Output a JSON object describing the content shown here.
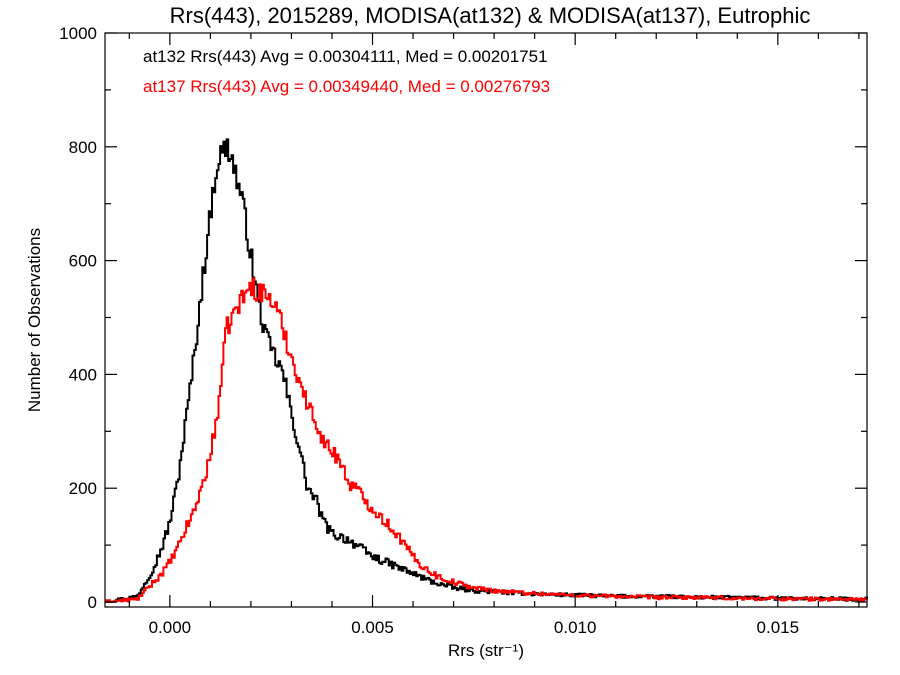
{
  "chart_data": {
    "type": "line",
    "title": "Rrs(443), 2015289, MODISA(at132) & MODISA(at137), Eutrophic",
    "xlabel": "Rrs (str⁻¹)",
    "ylabel": "Number of Observations",
    "xlim": [
      -0.0016,
      0.0172
    ],
    "ylim": [
      0,
      1000
    ],
    "x_ticks": [
      0.0,
      0.005,
      0.01,
      0.015
    ],
    "x_tick_labels": [
      "0.000",
      "0.005",
      "0.010",
      "0.015"
    ],
    "y_ticks": [
      0,
      200,
      400,
      600,
      800,
      1000
    ],
    "y_tick_labels": [
      "0",
      "200",
      "400",
      "600",
      "800",
      "1000"
    ],
    "grid": false,
    "line_style": "step",
    "annotations": [
      "at132 Rrs(443) Avg = 0.00304111, Med = 0.00201751",
      "at137 Rrs(443) Avg = 0.00349440, Med = 0.00276793"
    ],
    "series": [
      {
        "color": "#000000",
        "x": [
          -0.0016,
          -0.0008,
          -0.0006,
          -0.0004,
          -0.0002,
          0.0,
          0.0002,
          0.0004,
          0.0006,
          0.0008,
          0.001,
          0.0011,
          0.0012,
          0.0013,
          0.0014,
          0.0015,
          0.0016,
          0.0018,
          0.002,
          0.0022,
          0.0024,
          0.0026,
          0.0028,
          0.003,
          0.0032,
          0.0034,
          0.0036,
          0.0038,
          0.004,
          0.0042,
          0.0044,
          0.0046,
          0.0048,
          0.005,
          0.0055,
          0.006,
          0.0065,
          0.007,
          0.0075,
          0.008,
          0.009,
          0.01,
          0.011,
          0.012,
          0.013,
          0.014,
          0.015,
          0.016,
          0.017
        ],
        "y": [
          0,
          10,
          35,
          60,
          95,
          140,
          215,
          320,
          430,
          560,
          680,
          740,
          780,
          790,
          800,
          790,
          760,
          700,
          610,
          520,
          460,
          430,
          400,
          330,
          270,
          200,
          180,
          140,
          120,
          115,
          110,
          100,
          90,
          80,
          65,
          50,
          35,
          25,
          20,
          18,
          14,
          12,
          10,
          10,
          8,
          8,
          6,
          6,
          5
        ]
      },
      {
        "color": "#ff0000",
        "x": [
          -0.0016,
          -0.0008,
          -0.0006,
          -0.0004,
          -0.0002,
          0.0,
          0.0002,
          0.0004,
          0.0006,
          0.0008,
          0.001,
          0.0012,
          0.0014,
          0.0016,
          0.0018,
          0.002,
          0.0022,
          0.0024,
          0.0026,
          0.0028,
          0.003,
          0.0032,
          0.0034,
          0.0036,
          0.0038,
          0.004,
          0.0042,
          0.0044,
          0.0046,
          0.0048,
          0.005,
          0.0052,
          0.0054,
          0.0056,
          0.0058,
          0.006,
          0.0062,
          0.0064,
          0.0066,
          0.0068,
          0.007,
          0.0075,
          0.008,
          0.009,
          0.01,
          0.011,
          0.012,
          0.013,
          0.014,
          0.015,
          0.016,
          0.017
        ],
        "y": [
          0,
          5,
          20,
          35,
          50,
          70,
          95,
          130,
          160,
          205,
          255,
          345,
          480,
          510,
          535,
          555,
          545,
          540,
          520,
          480,
          430,
          390,
          345,
          320,
          280,
          265,
          250,
          210,
          200,
          180,
          165,
          150,
          135,
          120,
          100,
          80,
          65,
          55,
          45,
          40,
          35,
          25,
          20,
          15,
          12,
          10,
          8,
          8,
          6,
          6,
          5,
          5
        ]
      }
    ]
  }
}
